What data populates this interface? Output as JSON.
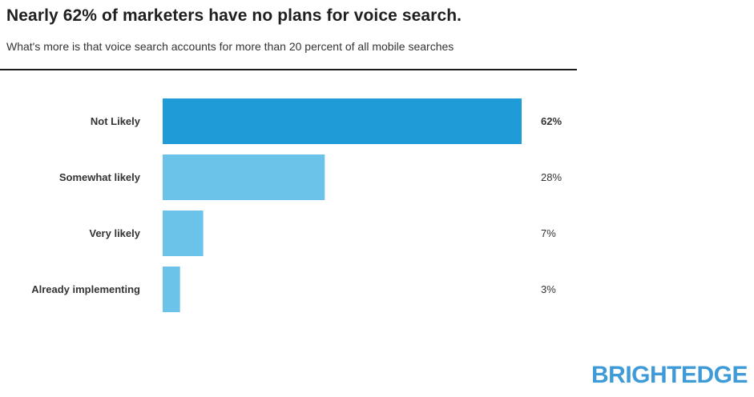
{
  "header": {
    "title": "Nearly 62% of marketers have no plans for voice search.",
    "subtitle": "What's more is that voice search accounts for more than 20 percent of all mobile searches"
  },
  "chart_data": {
    "type": "bar",
    "orientation": "horizontal",
    "categories": [
      "Not Likely",
      "Somewhat likely",
      "Very likely",
      "Already implementing"
    ],
    "values": [
      62,
      28,
      7,
      3
    ],
    "value_labels": [
      "62%",
      "28%",
      "7%",
      "3%"
    ],
    "title": "Nearly 62% of marketers have no plans for voice search.",
    "subtitle": "What's more is that voice search accounts for more than 20 percent of all mobile searches",
    "xlim": [
      0,
      62
    ],
    "grid": false,
    "colors": {
      "highlight": "#1f9bd7",
      "default": "#6cc3ea"
    }
  },
  "brand": {
    "logo_text": "BRIGHTEDGE",
    "color": "#3f9bd8"
  }
}
